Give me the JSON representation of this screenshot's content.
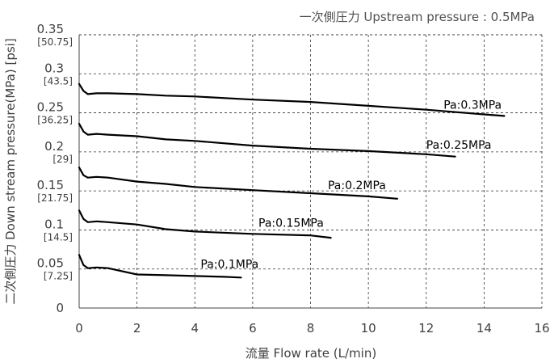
{
  "chart_data": {
    "type": "line",
    "title": "一次側圧力 Upstream pressure : 0.5MPa",
    "xlabel": "流量 Flow rate (L/min)",
    "ylabel": "二次側圧力 Down stream pressure(MPa) [psi]",
    "xlim": [
      0,
      16
    ],
    "ylim": [
      0,
      0.35
    ],
    "x_ticks": [
      "0",
      "2",
      "4",
      "6",
      "8",
      "10",
      "12",
      "14",
      "16"
    ],
    "y_ticks": [
      {
        "value": 0,
        "label": "0",
        "psi": ""
      },
      {
        "value": 0.05,
        "label": "0.05",
        "psi": "[7.25]"
      },
      {
        "value": 0.1,
        "label": "0.1",
        "psi": "[14.5]"
      },
      {
        "value": 0.15,
        "label": "0.15",
        "psi": "[21.75]"
      },
      {
        "value": 0.2,
        "label": "0.2",
        "psi": "[29]"
      },
      {
        "value": 0.25,
        "label": "0.25",
        "psi": "[36.25]"
      },
      {
        "value": 0.3,
        "label": "0.3",
        "psi": "[43.5]"
      },
      {
        "value": 0.35,
        "label": "0.35",
        "psi": "[50.75]"
      }
    ],
    "grid": true,
    "series": [
      {
        "name": "Pa:0.3MPa",
        "x": [
          0,
          0.15,
          0.3,
          0.6,
          1,
          2,
          3,
          4,
          6,
          8,
          10,
          12,
          14,
          14.7
        ],
        "y": [
          0.287,
          0.278,
          0.274,
          0.275,
          0.275,
          0.274,
          0.272,
          0.271,
          0.267,
          0.264,
          0.259,
          0.254,
          0.248,
          0.246
        ]
      },
      {
        "name": "Pa:0.25MPa",
        "x": [
          0,
          0.15,
          0.3,
          0.6,
          1,
          2,
          3,
          4,
          6,
          8,
          10,
          12,
          13
        ],
        "y": [
          0.236,
          0.226,
          0.222,
          0.223,
          0.222,
          0.22,
          0.216,
          0.214,
          0.208,
          0.204,
          0.201,
          0.197,
          0.194
        ]
      },
      {
        "name": "Pa:0.2MPa",
        "x": [
          0,
          0.15,
          0.3,
          0.6,
          1,
          2,
          3,
          4,
          6,
          8,
          10,
          11
        ],
        "y": [
          0.18,
          0.17,
          0.167,
          0.168,
          0.167,
          0.162,
          0.159,
          0.155,
          0.151,
          0.147,
          0.143,
          0.14
        ]
      },
      {
        "name": "Pa:0.15MPa",
        "x": [
          0,
          0.15,
          0.3,
          0.6,
          1,
          2,
          3,
          4,
          6,
          8,
          8.7
        ],
        "y": [
          0.125,
          0.114,
          0.11,
          0.111,
          0.11,
          0.107,
          0.101,
          0.098,
          0.095,
          0.093,
          0.09
        ]
      },
      {
        "name": "Pa:0.1MPa",
        "x": [
          0,
          0.15,
          0.3,
          0.6,
          1,
          2,
          3,
          4,
          5,
          5.6
        ],
        "y": [
          0.068,
          0.055,
          0.051,
          0.052,
          0.051,
          0.043,
          0.042,
          0.041,
          0.04,
          0.039
        ]
      }
    ],
    "series_labels": [
      {
        "text": "Pa:0.3MPa",
        "x": 12.6,
        "y": 0.255
      },
      {
        "text": "Pa:0.25MPa",
        "x": 12.0,
        "y": 0.204
      },
      {
        "text": "Pa:0.2MPa",
        "x": 8.6,
        "y": 0.152
      },
      {
        "text": "Pa:0.15MPa",
        "x": 6.2,
        "y": 0.104
      },
      {
        "text": "Pa:0.1MPa",
        "x": 4.2,
        "y": 0.051
      }
    ]
  }
}
